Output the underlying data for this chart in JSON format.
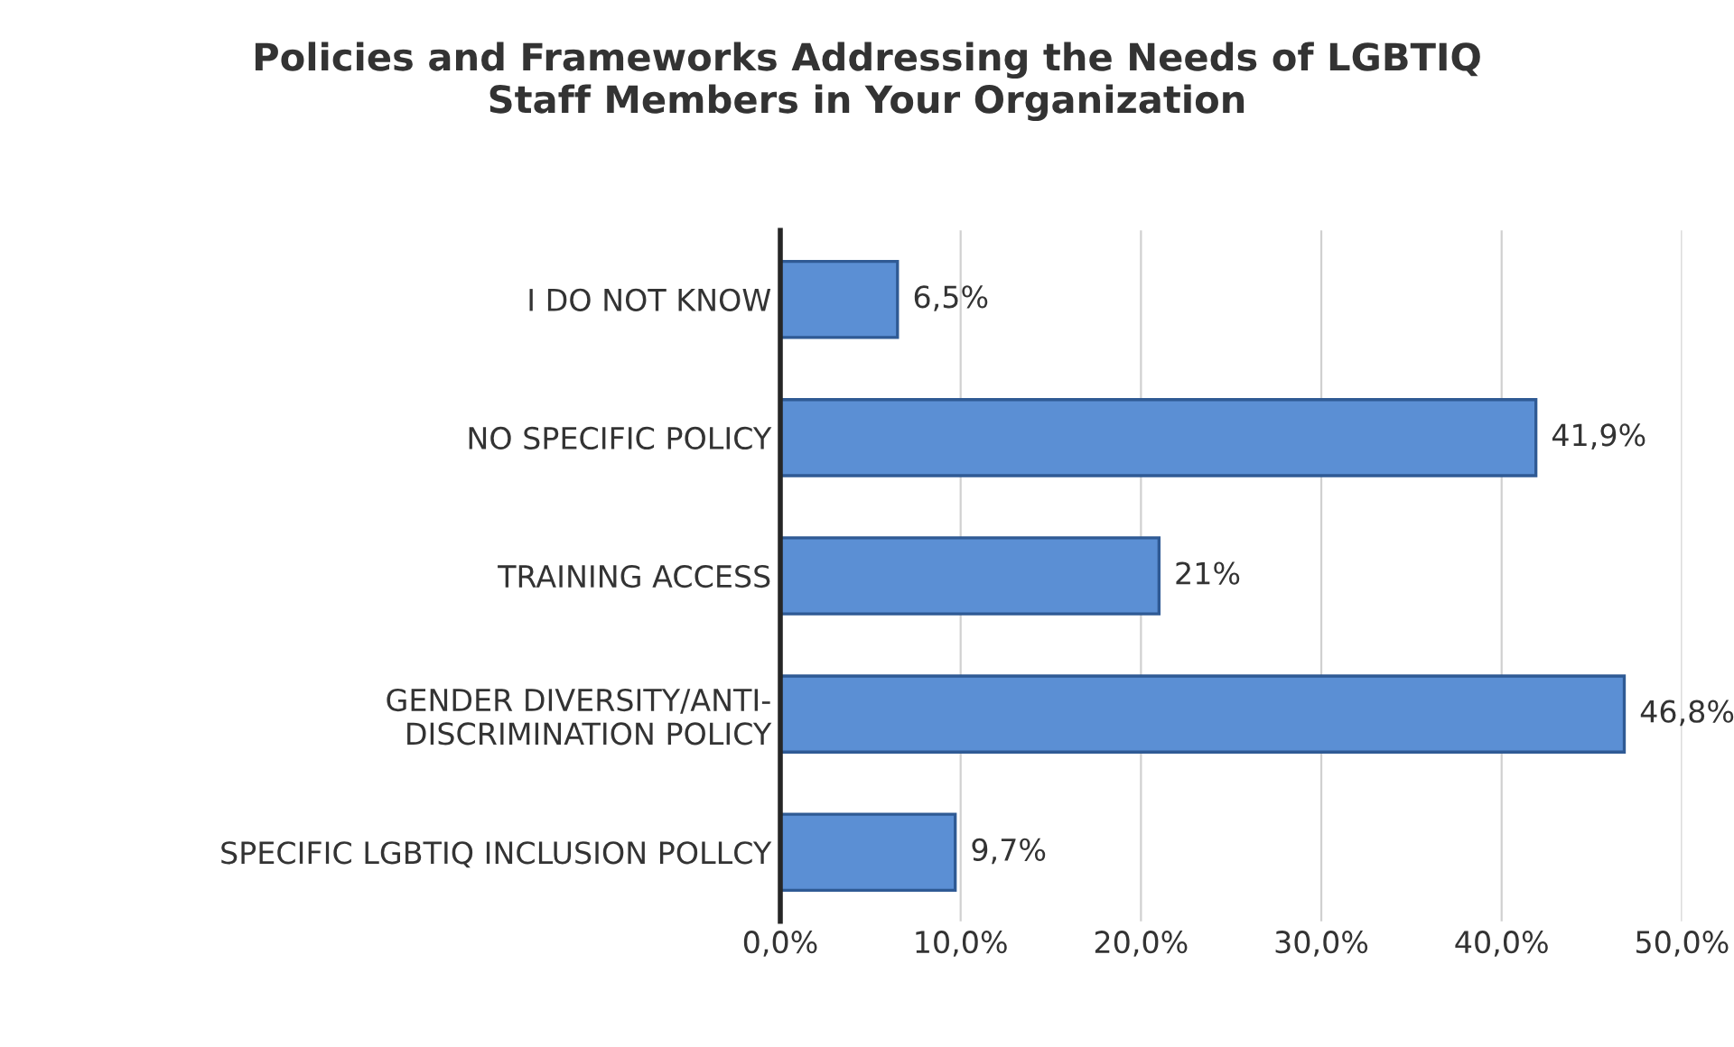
{
  "chart_data": {
    "type": "bar",
    "orientation": "horizontal",
    "title": "Policies and Frameworks Addressing the Needs of LGBTIQ\nStaff Members in Your Organization",
    "categories": [
      "I DO NOT KNOW",
      "NO SPECIFIC POLICY",
      "TRAINING ACCESS",
      "GENDER DIVERSITY/ANTI-\nDISCRIMINATION POLICY",
      "SPECIFIC LGBTIQ INCLUSION POLLCY"
    ],
    "values": [
      6.5,
      41.9,
      21,
      46.8,
      9.7
    ],
    "value_labels": [
      "6,5%",
      "41,9%",
      "21%",
      "46,8%",
      "9,7%"
    ],
    "color": "#5b8fd4",
    "xlim": [
      0,
      50
    ],
    "xticks": [
      {
        "value": 0,
        "label": "0,0%"
      },
      {
        "value": 10,
        "label": "10,0%"
      },
      {
        "value": 20,
        "label": "20,0%"
      },
      {
        "value": 30,
        "label": "30,0%"
      },
      {
        "value": 40,
        "label": "40,0%"
      },
      {
        "value": 50,
        "label": "50,0%"
      }
    ],
    "grid": "x",
    "legend": false
  }
}
